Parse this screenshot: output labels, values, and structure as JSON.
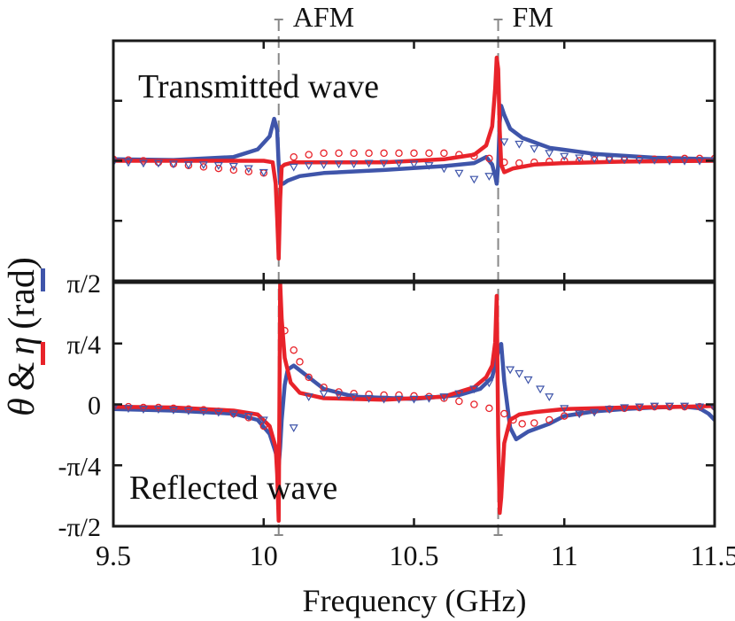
{
  "colors": {
    "theta": "#e8232a",
    "eta": "#3f55aa",
    "frame": "#1a1a1a",
    "marker": "#888888"
  },
  "chart_data": {
    "type": "line",
    "xlabel": "Frequency (GHz)",
    "xlim": [
      9.5,
      11.5
    ],
    "x_ticks": [
      {
        "value": 9.5,
        "label": "9.5"
      },
      {
        "value": 10,
        "label": "10"
      },
      {
        "value": 10.5,
        "label": "10.5"
      },
      {
        "value": 11,
        "label": "11"
      },
      {
        "value": 11.5,
        "label": "11.5"
      }
    ],
    "ylabel": {
      "theta": "θ",
      "amp": "&",
      "eta": "η",
      "unit": "(rad)"
    },
    "y_ticks": [
      {
        "value": 1.5708,
        "label": "π/2"
      },
      {
        "value": 0.7854,
        "label": "π/4"
      },
      {
        "value": 0,
        "label": "0"
      },
      {
        "value": -0.7854,
        "label": "-π/4"
      },
      {
        "value": -1.5708,
        "label": "-π/2"
      }
    ],
    "markers": [
      {
        "label": "AFM",
        "x": 10.05
      },
      {
        "label": "FM",
        "x": 10.78
      }
    ],
    "panels": [
      {
        "name": "transmitted",
        "annotation": "Transmitted wave",
        "ylim": [
          -1.5708,
          1.5708
        ],
        "show_tick_labels": false,
        "series": [
          {
            "color_key": "eta",
            "style": "line",
            "x": [
              9.5,
              9.7,
              9.9,
              9.98,
              10.02,
              10.035,
              10.045,
              10.05,
              10.055,
              10.065,
              10.08,
              10.12,
              10.2,
              10.4,
              10.6,
              10.7,
              10.74,
              10.76,
              10.77,
              10.775,
              10.78,
              10.785,
              10.79,
              10.8,
              10.82,
              10.86,
              10.95,
              11.1,
              11.3,
              11.5
            ],
            "y": [
              0.02,
              0.01,
              0.05,
              0.15,
              0.32,
              0.55,
              0.4,
              -0.05,
              -0.3,
              -0.3,
              -0.26,
              -0.2,
              -0.16,
              -0.12,
              -0.07,
              -0.03,
              0.05,
              -0.05,
              -0.2,
              -0.3,
              -0.05,
              0.5,
              0.72,
              0.6,
              0.42,
              0.3,
              0.17,
              0.09,
              0.04,
              0.02
            ]
          },
          {
            "color_key": "theta",
            "style": "line",
            "x": [
              9.5,
              9.7,
              9.9,
              10.0,
              10.03,
              10.04,
              10.045,
              10.05,
              10.055,
              10.06,
              10.07,
              10.1,
              10.2,
              10.4,
              10.6,
              10.7,
              10.74,
              10.76,
              10.77,
              10.775,
              10.78,
              10.785,
              10.79,
              10.8,
              10.83,
              10.9,
              11.0,
              11.2,
              11.5
            ],
            "y": [
              0,
              0,
              0,
              0,
              -0.02,
              -0.3,
              -0.75,
              -1.28,
              -0.5,
              -0.08,
              -0.05,
              -0.02,
              -0.02,
              -0.02,
              0.02,
              0.08,
              0.2,
              0.45,
              0.95,
              1.35,
              1.2,
              0.4,
              -0.05,
              -0.15,
              -0.1,
              -0.05,
              -0.03,
              -0.01,
              0
            ]
          },
          {
            "color_key": "theta",
            "style": "circle",
            "x": [
              9.5,
              9.55,
              9.6,
              9.65,
              9.7,
              9.75,
              9.8,
              9.85,
              9.9,
              9.95,
              10.0,
              10.1,
              10.15,
              10.2,
              10.25,
              10.3,
              10.35,
              10.4,
              10.45,
              10.5,
              10.55,
              10.6,
              10.65,
              10.7,
              10.75,
              10.8,
              10.85,
              10.9,
              10.95,
              11.0,
              11.05,
              11.1,
              11.15,
              11.2,
              11.25,
              11.3,
              11.35,
              11.4,
              11.45,
              11.5
            ],
            "y": [
              0.02,
              0.01,
              0.0,
              -0.02,
              -0.04,
              -0.06,
              -0.08,
              -0.1,
              -0.12,
              -0.14,
              -0.16,
              0.05,
              0.08,
              0.1,
              0.1,
              0.1,
              0.1,
              0.1,
              0.1,
              0.1,
              0.1,
              0.1,
              0.08,
              0.06,
              0.03,
              -0.02,
              -0.03,
              -0.02,
              -0.01,
              0.0,
              0.0,
              0.01,
              0.01,
              0.01,
              0.02,
              0.02,
              0.02,
              0.03,
              0.03,
              0.03
            ]
          },
          {
            "color_key": "eta",
            "style": "triangle",
            "x": [
              9.5,
              9.55,
              9.6,
              9.65,
              9.7,
              9.75,
              9.8,
              9.85,
              9.9,
              9.95,
              10.0,
              10.1,
              10.15,
              10.2,
              10.25,
              10.3,
              10.35,
              10.4,
              10.45,
              10.5,
              10.55,
              10.6,
              10.65,
              10.7,
              10.75,
              10.8,
              10.85,
              10.9,
              10.95,
              11.0,
              11.05,
              11.1,
              11.15,
              11.2,
              11.25,
              11.3,
              11.35,
              11.4,
              11.45,
              11.5
            ],
            "y": [
              -0.02,
              -0.02,
              -0.03,
              -0.03,
              -0.04,
              -0.05,
              -0.05,
              -0.06,
              -0.07,
              -0.1,
              -0.15,
              -0.08,
              -0.06,
              -0.05,
              -0.04,
              -0.04,
              -0.03,
              -0.03,
              -0.03,
              -0.04,
              -0.06,
              -0.1,
              -0.16,
              -0.24,
              -0.2,
              0.25,
              0.22,
              0.16,
              0.1,
              0.06,
              0.04,
              0.03,
              0.02,
              0.02,
              0.01,
              0.01,
              0.0,
              0.0,
              0.0,
              0.0
            ]
          }
        ]
      },
      {
        "name": "reflected",
        "annotation": "Reflected wave",
        "ylim": [
          -1.5708,
          1.5708
        ],
        "show_tick_labels": true,
        "series": [
          {
            "color_key": "eta",
            "style": "line",
            "x": [
              9.5,
              9.7,
              9.9,
              9.98,
              10.02,
              10.04,
              10.05,
              10.055,
              10.06,
              10.07,
              10.08,
              10.1,
              10.15,
              10.2,
              10.3,
              10.5,
              10.65,
              10.72,
              10.76,
              10.78,
              10.79,
              10.8,
              10.82,
              10.84,
              10.88,
              10.95,
              11.0,
              11.1,
              11.2,
              11.3,
              11.4,
              11.45,
              11.48,
              11.5
            ],
            "y": [
              -0.06,
              -0.08,
              -0.12,
              -0.2,
              -0.38,
              -0.62,
              -0.8,
              -0.55,
              -0.2,
              0.25,
              0.45,
              0.5,
              0.35,
              0.2,
              0.1,
              0.07,
              0.12,
              0.2,
              0.35,
              0.68,
              0.78,
              0.3,
              -0.3,
              -0.45,
              -0.35,
              -0.25,
              -0.15,
              -0.09,
              -0.06,
              -0.04,
              -0.03,
              -0.05,
              -0.12,
              -0.2
            ]
          },
          {
            "color_key": "theta",
            "style": "line",
            "x": [
              9.5,
              9.7,
              9.9,
              9.98,
              10.02,
              10.04,
              10.045,
              10.05,
              10.055,
              10.06,
              10.07,
              10.09,
              10.12,
              10.2,
              10.4,
              10.6,
              10.7,
              10.74,
              10.76,
              10.77,
              10.775,
              10.78,
              10.785,
              10.79,
              10.8,
              10.82,
              10.85,
              10.9,
              11.0,
              11.2,
              11.4,
              11.5
            ],
            "y": [
              -0.03,
              -0.04,
              -0.08,
              -0.13,
              -0.28,
              -0.55,
              -0.9,
              -1.5,
              1.56,
              1.1,
              0.6,
              0.28,
              0.15,
              0.08,
              0.06,
              0.1,
              0.22,
              0.35,
              0.5,
              0.8,
              1.4,
              -0.4,
              -1.4,
              -1.2,
              -0.5,
              -0.2,
              -0.13,
              -0.1,
              -0.06,
              -0.04,
              -0.03,
              -0.02
            ]
          },
          {
            "color_key": "theta",
            "style": "circle",
            "x": [
              9.5,
              9.55,
              9.6,
              9.65,
              9.7,
              9.75,
              9.8,
              9.85,
              9.9,
              9.95,
              10.0,
              10.07,
              10.1,
              10.12,
              10.15,
              10.2,
              10.25,
              10.3,
              10.35,
              10.4,
              10.45,
              10.5,
              10.55,
              10.6,
              10.65,
              10.7,
              10.75,
              10.8,
              10.83,
              10.86,
              10.9,
              10.95,
              11.0,
              11.05,
              11.1,
              11.15,
              11.2,
              11.25,
              11.3,
              11.35,
              11.4,
              11.45,
              11.5
            ],
            "y": [
              -0.03,
              -0.03,
              -0.04,
              -0.04,
              -0.05,
              -0.06,
              -0.07,
              -0.09,
              -0.12,
              -0.17,
              -0.28,
              0.95,
              0.7,
              0.55,
              0.35,
              0.22,
              0.16,
              0.14,
              0.13,
              0.12,
              0.12,
              0.11,
              0.1,
              0.08,
              0.04,
              0.0,
              -0.05,
              -0.12,
              -0.2,
              -0.25,
              -0.24,
              -0.2,
              -0.15,
              -0.11,
              -0.08,
              -0.06,
              -0.05,
              -0.04,
              -0.03,
              -0.03,
              -0.03,
              -0.03,
              -0.03
            ]
          },
          {
            "color_key": "eta",
            "style": "triangle",
            "x": [
              9.5,
              9.55,
              9.6,
              9.65,
              9.7,
              9.75,
              9.8,
              9.85,
              9.9,
              9.95,
              10.0,
              10.1,
              10.15,
              10.2,
              10.25,
              10.3,
              10.35,
              10.4,
              10.45,
              10.5,
              10.55,
              10.6,
              10.65,
              10.7,
              10.75,
              10.82,
              10.85,
              10.88,
              10.92,
              10.95,
              11.0,
              11.05,
              11.1,
              11.15,
              11.2,
              11.25,
              11.3,
              11.35,
              11.4,
              11.45,
              11.5
            ],
            "y": [
              -0.05,
              -0.05,
              -0.06,
              -0.06,
              -0.07,
              -0.08,
              -0.09,
              -0.1,
              -0.12,
              -0.15,
              -0.2,
              -0.3,
              0.1,
              0.14,
              0.12,
              0.1,
              0.08,
              0.07,
              0.07,
              0.07,
              0.08,
              0.1,
              0.14,
              0.2,
              0.28,
              0.45,
              0.4,
              0.32,
              0.2,
              0.1,
              -0.05,
              -0.12,
              -0.1,
              -0.06,
              -0.04,
              -0.03,
              -0.02,
              -0.02,
              -0.02,
              -0.03,
              -0.05
            ]
          }
        ]
      }
    ]
  }
}
